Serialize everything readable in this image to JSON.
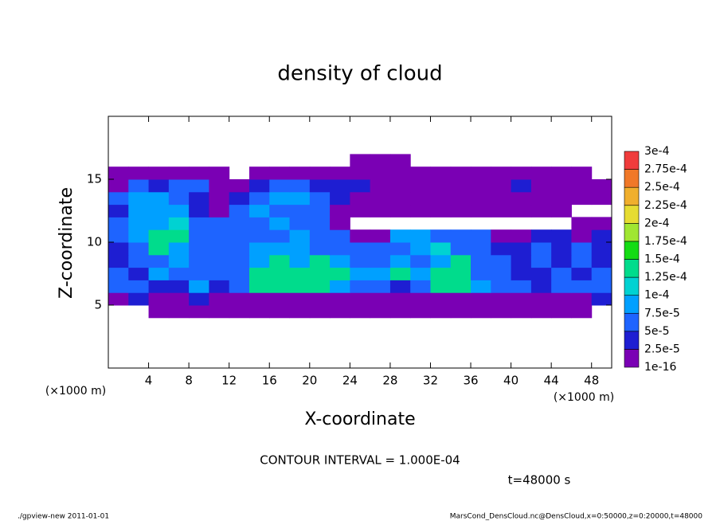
{
  "chart_data": {
    "type": "heatmap",
    "title": "density of cloud",
    "x_label": "X-coordinate",
    "y_label": "Z-coordinate",
    "x_unit": "(×1000 m)",
    "y_unit": "(×1000 m)",
    "xlim": [
      0,
      50
    ],
    "ylim": [
      0,
      20
    ],
    "xticks": [
      4,
      8,
      12,
      16,
      20,
      24,
      28,
      32,
      36,
      40,
      44,
      48
    ],
    "yticks": [
      5,
      10,
      15
    ],
    "x": [
      1,
      3,
      5,
      7,
      9,
      11,
      13,
      15,
      17,
      19,
      21,
      23,
      25,
      27,
      29,
      31,
      33,
      35,
      37,
      39,
      41,
      43,
      45,
      47,
      49
    ],
    "y": [
      4.5,
      5.5,
      6.5,
      7.5,
      8.5,
      9.5,
      10.5,
      11.5,
      12.5,
      13.5,
      14.5,
      15.5,
      16.5
    ],
    "values": [
      [
        null,
        null,
        1e-16,
        1e-16,
        1e-16,
        1e-16,
        1e-16,
        1e-16,
        1e-16,
        1e-16,
        1e-16,
        1e-16,
        1e-16,
        1e-16,
        1e-16,
        1e-16,
        1e-16,
        1e-16,
        1e-16,
        1e-16,
        1e-16,
        1e-16,
        1e-16,
        1e-16,
        null
      ],
      [
        1e-16,
        2.5e-05,
        1e-16,
        1e-16,
        2.5e-05,
        1e-16,
        1e-16,
        1e-16,
        1e-16,
        1e-16,
        1e-16,
        1e-16,
        1e-16,
        1e-16,
        1e-16,
        1e-16,
        1e-16,
        1e-16,
        1e-16,
        1e-16,
        1e-16,
        1e-16,
        1e-16,
        1e-16,
        2.5e-05
      ],
      [
        5e-05,
        5e-05,
        2.5e-05,
        2.5e-05,
        7.5e-05,
        2.5e-05,
        5e-05,
        0.000125,
        0.000125,
        0.000125,
        0.000125,
        7.5e-05,
        5e-05,
        5e-05,
        2.5e-05,
        5e-05,
        0.000125,
        0.000125,
        7.5e-05,
        5e-05,
        5e-05,
        2.5e-05,
        5e-05,
        5e-05,
        5e-05
      ],
      [
        5e-05,
        2.5e-05,
        7.5e-05,
        5e-05,
        5e-05,
        5e-05,
        5e-05,
        0.000125,
        0.000125,
        0.000125,
        0.000125,
        0.000125,
        7.5e-05,
        7.5e-05,
        0.000125,
        7.5e-05,
        0.000125,
        0.000125,
        5e-05,
        5e-05,
        2.5e-05,
        2.5e-05,
        5e-05,
        2.5e-05,
        5e-05
      ],
      [
        2.5e-05,
        5e-05,
        5e-05,
        7.5e-05,
        5e-05,
        5e-05,
        5e-05,
        7.5e-05,
        0.000125,
        7.5e-05,
        0.000125,
        7.5e-05,
        5e-05,
        5e-05,
        7.5e-05,
        5e-05,
        7.5e-05,
        0.000125,
        5e-05,
        5e-05,
        2.5e-05,
        5e-05,
        2.5e-05,
        5e-05,
        2.5e-05
      ],
      [
        2.5e-05,
        5e-05,
        0.000125,
        7.5e-05,
        5e-05,
        5e-05,
        5e-05,
        7.5e-05,
        7.5e-05,
        7.5e-05,
        5e-05,
        5e-05,
        5e-05,
        5e-05,
        5e-05,
        7.5e-05,
        0.0001,
        5e-05,
        5e-05,
        2.5e-05,
        2.5e-05,
        5e-05,
        2.5e-05,
        5e-05,
        2.5e-05
      ],
      [
        5e-05,
        7.5e-05,
        0.000125,
        0.000125,
        5e-05,
        5e-05,
        5e-05,
        5e-05,
        5e-05,
        7.5e-05,
        5e-05,
        5e-05,
        1e-16,
        1e-16,
        7.5e-05,
        7.5e-05,
        5e-05,
        5e-05,
        5e-05,
        1e-16,
        1e-16,
        2.5e-05,
        2.5e-05,
        1e-16,
        2.5e-05
      ],
      [
        5e-05,
        7.5e-05,
        7.5e-05,
        0.0001,
        5e-05,
        5e-05,
        5e-05,
        5e-05,
        7.5e-05,
        5e-05,
        5e-05,
        1e-16,
        null,
        null,
        null,
        null,
        null,
        null,
        null,
        null,
        null,
        null,
        null,
        1e-16,
        1e-16
      ],
      [
        2.5e-05,
        7.5e-05,
        7.5e-05,
        7.5e-05,
        2.5e-05,
        1e-16,
        5e-05,
        7.5e-05,
        5e-05,
        5e-05,
        5e-05,
        1e-16,
        1e-16,
        1e-16,
        1e-16,
        1e-16,
        1e-16,
        1e-16,
        1e-16,
        1e-16,
        1e-16,
        1e-16,
        1e-16,
        null,
        null
      ],
      [
        5e-05,
        7.5e-05,
        7.5e-05,
        5e-05,
        2.5e-05,
        1e-16,
        2.5e-05,
        5e-05,
        7.5e-05,
        7.5e-05,
        5e-05,
        2.5e-05,
        1e-16,
        1e-16,
        1e-16,
        1e-16,
        1e-16,
        1e-16,
        1e-16,
        1e-16,
        1e-16,
        1e-16,
        1e-16,
        1e-16,
        1e-16
      ],
      [
        1e-16,
        5e-05,
        2.5e-05,
        5e-05,
        5e-05,
        1e-16,
        1e-16,
        2.5e-05,
        5e-05,
        5e-05,
        2.5e-05,
        2.5e-05,
        2.5e-05,
        1e-16,
        1e-16,
        1e-16,
        1e-16,
        1e-16,
        1e-16,
        1e-16,
        2.5e-05,
        1e-16,
        1e-16,
        1e-16,
        1e-16
      ],
      [
        1e-16,
        1e-16,
        1e-16,
        1e-16,
        1e-16,
        1e-16,
        null,
        1e-16,
        1e-16,
        1e-16,
        1e-16,
        1e-16,
        1e-16,
        1e-16,
        1e-16,
        1e-16,
        1e-16,
        1e-16,
        1e-16,
        1e-16,
        1e-16,
        1e-16,
        1e-16,
        1e-16,
        null
      ],
      [
        null,
        null,
        null,
        null,
        null,
        null,
        null,
        null,
        null,
        null,
        null,
        null,
        1e-16,
        1e-16,
        1e-16,
        null,
        null,
        null,
        null,
        null,
        null,
        null,
        null,
        null,
        null
      ]
    ],
    "levels": [
      1e-16,
      {
        "value": 2.5e-05,
        "label": "2.5e-5"
      },
      {
        "value": 5e-05,
        "label": "5e-5"
      },
      {
        "value": 7.5e-05,
        "label": "7.5e-5"
      },
      {
        "value": 0.0001,
        "label": "1e-4"
      },
      {
        "value": 0.000125,
        "label": "1.25e-4"
      },
      {
        "value": 0.00015,
        "label": "1.5e-4"
      },
      {
        "value": 0.000175,
        "label": "1.75e-4"
      },
      {
        "value": 0.0002,
        "label": "2e-4"
      },
      {
        "value": 0.000225,
        "label": "2.25e-4"
      },
      {
        "value": 0.00025,
        "label": "2.5e-4"
      },
      {
        "value": 0.000275,
        "label": "2.75e-4"
      },
      {
        "value": 0.0003,
        "label": "3e-4"
      }
    ],
    "colors": [
      "#7a00b4",
      "#1e1ed2",
      "#1e64ff",
      "#00a0ff",
      "#00d2d2",
      "#00dc8c",
      "#14dc14",
      "#a0e632",
      "#e6dc32",
      "#f0af2d",
      "#f07828",
      "#f03c3c",
      "#f08c8c"
    ],
    "contour_interval": "CONTOUR INTERVAL = 1.000E-04",
    "time_label": "t=48000 s",
    "footer_left": "./gpview-new   2011-01-01",
    "footer_right": "MarsCond_DensCloud.nc@DensCloud,x=0:50000,z=0:20000,t=48000"
  }
}
